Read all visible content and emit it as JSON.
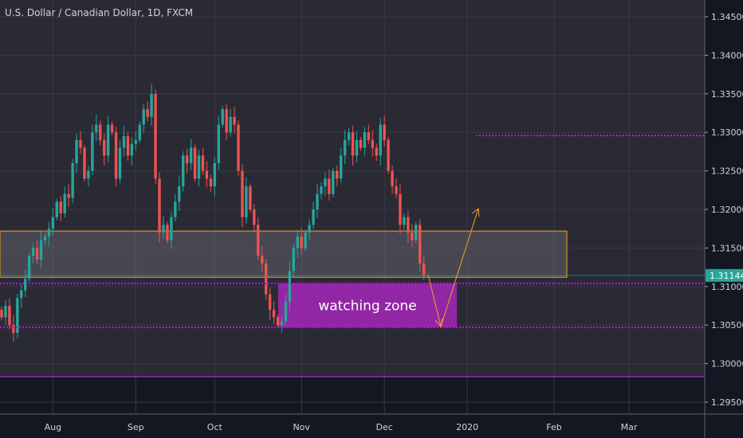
{
  "header": {
    "title": "U.S. Dollar / Canadian Dollar, 1D, FXCM"
  },
  "colors": {
    "up": "#26a69a",
    "down": "#ef5350",
    "bg": "#2a2a35",
    "bg_dark": "#131722",
    "magenta": "#d500f9",
    "zone": "#9c27b0",
    "orange": "#f7a21b",
    "price_tag": "#26a69a"
  },
  "chart_data": {
    "type": "candlestick",
    "symbol": "USDCAD",
    "ylim": [
      1.2925,
      1.3475
    ],
    "y_ticks": [
      "1.34500",
      "1.34000",
      "1.33500",
      "1.33000",
      "1.32500",
      "1.32000",
      "1.31500",
      "1.31000",
      "1.30500",
      "1.30000",
      "1.29500"
    ],
    "x_ticks": [
      "Aug",
      "Sep",
      "Oct",
      "Nov",
      "Dec",
      "2020",
      "Feb",
      "Mar"
    ],
    "x_tick_bar_index": [
      13,
      34,
      54,
      76,
      97,
      118,
      140,
      159
    ],
    "last_price": "1.31144",
    "start_open": 1.307,
    "closes": [
      1.306,
      1.3075,
      1.305,
      1.304,
      1.3085,
      1.3095,
      1.311,
      1.314,
      1.315,
      1.3135,
      1.316,
      1.3165,
      1.3175,
      1.319,
      1.321,
      1.3195,
      1.322,
      1.3215,
      1.326,
      1.329,
      1.328,
      1.324,
      1.325,
      1.33,
      1.331,
      1.329,
      1.327,
      1.331,
      1.33,
      1.324,
      1.328,
      1.3295,
      1.327,
      1.3285,
      1.329,
      1.331,
      1.333,
      1.332,
      1.335,
      1.324,
      1.317,
      1.318,
      1.316,
      1.319,
      1.321,
      1.323,
      1.327,
      1.326,
      1.328,
      1.324,
      1.327,
      1.325,
      1.324,
      1.323,
      1.326,
      1.331,
      1.333,
      1.33,
      1.332,
      1.331,
      1.325,
      1.319,
      1.323,
      1.32,
      1.318,
      1.314,
      1.313,
      1.309,
      1.307,
      1.306,
      1.305,
      1.3055,
      1.308,
      1.312,
      1.315,
      1.3165,
      1.315,
      1.317,
      1.318,
      1.32,
      1.322,
      1.323,
      1.324,
      1.322,
      1.325,
      1.324,
      1.327,
      1.329,
      1.33,
      1.327,
      1.329,
      1.328,
      1.33,
      1.329,
      1.328,
      1.327,
      1.331,
      1.329,
      1.325,
      1.323,
      1.322,
      1.318,
      1.319,
      1.317,
      1.316,
      1.318,
      1.313,
      1.3114
    ],
    "annotations": {
      "resistance_box": [
        1.3112,
        1.3172
      ],
      "support_lines": [
        1.3104,
        1.3047
      ],
      "target_line": 1.3296,
      "bottom_line": 1.2983,
      "zone_label": "watching zone",
      "zone_range": [
        1.3047,
        1.3104
      ]
    }
  }
}
